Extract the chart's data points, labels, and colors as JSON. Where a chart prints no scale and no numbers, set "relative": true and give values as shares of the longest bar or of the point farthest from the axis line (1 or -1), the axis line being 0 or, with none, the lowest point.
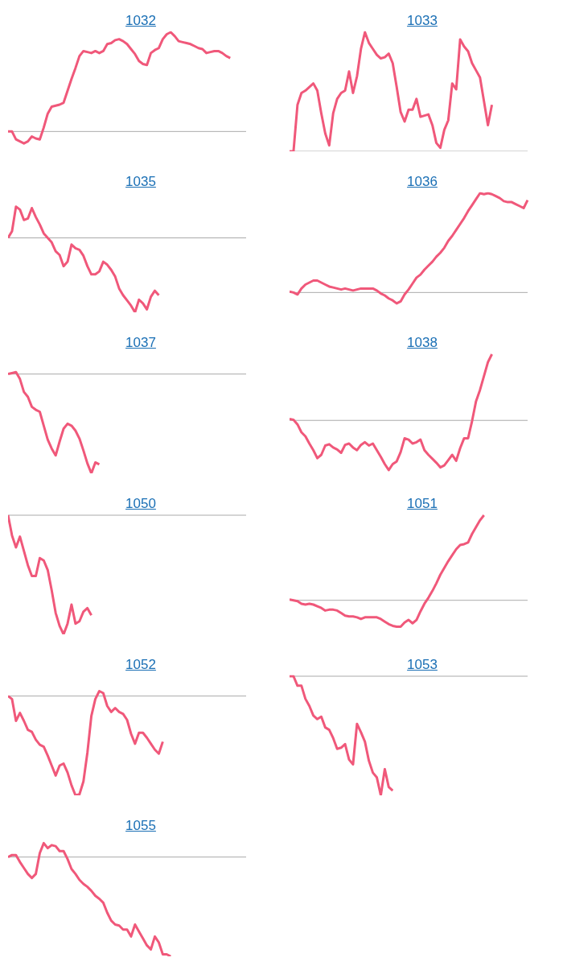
{
  "chart_data": [
    {
      "type": "line",
      "title": "1032",
      "relative": true,
      "color": "#f0587a",
      "ref_lines": [
        {
          "axis": "y",
          "value": 0,
          "color": "#aaaaaa"
        }
      ],
      "categories": [
        null,
        null,
        null,
        null,
        null,
        null,
        null,
        null,
        null,
        null,
        null,
        null,
        null,
        null,
        null,
        null,
        null,
        null,
        null,
        null,
        null,
        null,
        null,
        null,
        null,
        null,
        null,
        null,
        null,
        null,
        null,
        null,
        null,
        null,
        null,
        null,
        null,
        null,
        null,
        null,
        null,
        null,
        null,
        null,
        null,
        null,
        null,
        null,
        null,
        null,
        null,
        null,
        null,
        null,
        null,
        null,
        null,
        null,
        null,
        null,
        null
      ],
      "values": [
        0,
        0,
        -0.08,
        -0.1,
        -0.12,
        -0.1,
        -0.05,
        -0.07,
        -0.08,
        0.04,
        0.18,
        0.25,
        0.26,
        0.27,
        0.29,
        0.41,
        0.53,
        0.64,
        0.76,
        0.81,
        0.8,
        0.79,
        0.81,
        0.79,
        0.81,
        0.88,
        0.89,
        0.92,
        0.93,
        0.91,
        0.88,
        0.83,
        0.78,
        0.71,
        0.68,
        0.67,
        0.79,
        0.82,
        0.84,
        0.93,
        0.98,
        1,
        0.96,
        0.91,
        0.9,
        0.89,
        0.88,
        0.86,
        0.84,
        0.83,
        0.79,
        0.8,
        0.81,
        0.81,
        0.79,
        0.76,
        0.74,
        null,
        null,
        null,
        null
      ]
    },
    {
      "type": "line",
      "title": "1033",
      "relative": true,
      "color": "#f0587a",
      "ref_lines": [
        {
          "axis": "y",
          "value": 0,
          "color": "#aaaaaa"
        }
      ],
      "categories": [
        null,
        null,
        null,
        null,
        null,
        null,
        null,
        null,
        null,
        null,
        null,
        null,
        null,
        null,
        null,
        null,
        null,
        null,
        null,
        null,
        null,
        null,
        null,
        null,
        null,
        null,
        null,
        null,
        null,
        null,
        null,
        null,
        null,
        null,
        null,
        null,
        null,
        null,
        null,
        null,
        null,
        null,
        null,
        null,
        null,
        null,
        null,
        null,
        null,
        null,
        null,
        null,
        null,
        null,
        null,
        null,
        null,
        null,
        null,
        null,
        null
      ],
      "values": [
        0,
        0,
        0.39,
        0.49,
        0.51,
        0.54,
        0.57,
        0.51,
        0.32,
        0.15,
        0.05,
        0.32,
        0.44,
        0.49,
        0.51,
        0.67,
        0.49,
        0.63,
        0.86,
        1,
        0.91,
        0.86,
        0.81,
        0.78,
        0.79,
        0.82,
        0.74,
        0.54,
        0.33,
        0.25,
        0.35,
        0.35,
        0.44,
        0.29,
        0.3,
        0.31,
        0.22,
        0.07,
        0.03,
        0.18,
        0.26,
        0.57,
        0.52,
        0.94,
        0.88,
        0.84,
        0.74,
        0.68,
        0.62,
        0.42,
        0.22,
        0.39,
        null,
        null,
        null,
        null,
        null,
        null,
        null,
        null,
        null
      ]
    },
    {
      "type": "line",
      "title": "1035",
      "relative": true,
      "color": "#f0587a",
      "ref_lines": [
        {
          "axis": "y",
          "value": 0,
          "color": "#aaaaaa"
        }
      ],
      "categories": [
        null,
        null,
        null,
        null,
        null,
        null,
        null,
        null,
        null,
        null,
        null,
        null,
        null,
        null,
        null,
        null,
        null,
        null,
        null,
        null,
        null,
        null,
        null,
        null,
        null,
        null,
        null,
        null,
        null,
        null,
        null,
        null,
        null,
        null,
        null,
        null,
        null,
        null,
        null,
        null,
        null,
        null,
        null,
        null,
        null,
        null,
        null,
        null,
        null,
        null,
        null,
        null,
        null,
        null,
        null,
        null,
        null,
        null,
        null,
        null,
        null
      ],
      "values": [
        0,
        0.09,
        0.42,
        0.38,
        0.24,
        0.26,
        0.4,
        0.28,
        0.18,
        0.06,
        0,
        -0.06,
        -0.18,
        -0.23,
        -0.38,
        -0.32,
        -0.09,
        -0.14,
        -0.16,
        -0.24,
        -0.38,
        -0.49,
        -0.49,
        -0.45,
        -0.32,
        -0.36,
        -0.43,
        -0.52,
        -0.68,
        -0.77,
        -0.84,
        -0.91,
        -1,
        -0.83,
        -0.88,
        -0.96,
        -0.79,
        -0.71,
        -0.77,
        null,
        null,
        null,
        null,
        null,
        null,
        null,
        null,
        null,
        null,
        null,
        null,
        null,
        null,
        null,
        null,
        null,
        null,
        null,
        null,
        null,
        null
      ]
    },
    {
      "type": "line",
      "title": "1036",
      "relative": true,
      "color": "#f0587a",
      "ref_lines": [
        {
          "axis": "y",
          "value": 0,
          "color": "#aaaaaa"
        }
      ],
      "categories": [
        null,
        null,
        null,
        null,
        null,
        null,
        null,
        null,
        null,
        null,
        null,
        null,
        null,
        null,
        null,
        null,
        null,
        null,
        null,
        null,
        null,
        null,
        null,
        null,
        null,
        null,
        null,
        null,
        null,
        null,
        null,
        null,
        null,
        null,
        null,
        null,
        null,
        null,
        null,
        null,
        null,
        null,
        null,
        null,
        null,
        null,
        null,
        null,
        null,
        null,
        null,
        null,
        null,
        null,
        null,
        null,
        null,
        null,
        null,
        null,
        null
      ],
      "values": [
        0.01,
        0,
        -0.02,
        0.04,
        0.08,
        0.1,
        0.12,
        0.12,
        0.1,
        0.08,
        0.06,
        0.05,
        0.04,
        0.03,
        0.04,
        0.03,
        0.02,
        0.03,
        0.04,
        0.04,
        0.04,
        0.04,
        0.02,
        -0.01,
        -0.03,
        -0.06,
        -0.08,
        -0.11,
        -0.09,
        -0.02,
        0.03,
        0.09,
        0.15,
        0.18,
        0.23,
        0.27,
        0.31,
        0.36,
        0.4,
        0.45,
        0.52,
        0.57,
        0.63,
        0.69,
        0.75,
        0.82,
        0.88,
        0.94,
        1,
        0.99,
        1,
        0.99,
        0.97,
        0.95,
        0.92,
        0.91,
        0.91,
        0.89,
        0.87,
        0.85,
        0.93
      ]
    },
    {
      "type": "line",
      "title": "1037",
      "relative": true,
      "color": "#f0587a",
      "ref_lines": [
        {
          "axis": "y",
          "value": 0,
          "color": "#aaaaaa"
        }
      ],
      "categories": [
        null,
        null,
        null,
        null,
        null,
        null,
        null,
        null,
        null,
        null,
        null,
        null,
        null,
        null,
        null,
        null,
        null,
        null,
        null,
        null,
        null,
        null,
        null,
        null,
        null,
        null,
        null,
        null,
        null,
        null,
        null,
        null,
        null,
        null,
        null,
        null,
        null,
        null,
        null,
        null,
        null,
        null,
        null,
        null,
        null,
        null,
        null,
        null,
        null,
        null,
        null,
        null,
        null,
        null,
        null,
        null,
        null,
        null,
        null,
        null,
        null
      ],
      "values": [
        0,
        0.01,
        0.02,
        -0.05,
        -0.18,
        -0.23,
        -0.33,
        -0.36,
        -0.38,
        -0.52,
        -0.66,
        -0.75,
        -0.82,
        -0.68,
        -0.55,
        -0.5,
        -0.52,
        -0.57,
        -0.65,
        -0.77,
        -0.9,
        -1,
        -0.89,
        -0.91,
        null,
        null,
        null,
        null,
        null,
        null,
        null,
        null,
        null,
        null,
        null,
        null,
        null,
        null,
        null,
        null,
        null,
        null,
        null,
        null,
        null,
        null,
        null,
        null,
        null,
        null,
        null,
        null,
        null,
        null,
        null,
        null,
        null,
        null,
        null,
        null,
        null
      ]
    },
    {
      "type": "line",
      "title": "1038",
      "relative": true,
      "color": "#f0587a",
      "ref_lines": [
        {
          "axis": "y",
          "value": 0,
          "color": "#aaaaaa"
        }
      ],
      "categories": [
        null,
        null,
        null,
        null,
        null,
        null,
        null,
        null,
        null,
        null,
        null,
        null,
        null,
        null,
        null,
        null,
        null,
        null,
        null,
        null,
        null,
        null,
        null,
        null,
        null,
        null,
        null,
        null,
        null,
        null,
        null,
        null,
        null,
        null,
        null,
        null,
        null,
        null,
        null,
        null,
        null,
        null,
        null,
        null,
        null,
        null,
        null,
        null,
        null,
        null,
        null,
        null,
        null,
        null,
        null,
        null,
        null,
        null,
        null,
        null,
        null
      ],
      "values": [
        0.02,
        0.01,
        -0.06,
        -0.18,
        -0.24,
        -0.35,
        -0.45,
        -0.57,
        -0.52,
        -0.38,
        -0.36,
        -0.41,
        -0.44,
        -0.49,
        -0.37,
        -0.35,
        -0.41,
        -0.45,
        -0.37,
        -0.33,
        -0.38,
        -0.35,
        -0.45,
        -0.55,
        -0.66,
        -0.75,
        -0.66,
        -0.62,
        -0.48,
        -0.27,
        -0.29,
        -0.35,
        -0.33,
        -0.29,
        -0.45,
        -0.52,
        -0.58,
        -0.64,
        -0.71,
        -0.68,
        -0.6,
        -0.52,
        -0.61,
        -0.42,
        -0.27,
        -0.27,
        -0.01,
        0.29,
        0.46,
        0.67,
        0.88,
        1,
        null,
        null,
        null,
        null,
        null,
        null,
        null,
        null,
        null
      ]
    },
    {
      "type": "line",
      "title": "1050",
      "relative": true,
      "color": "#f0587a",
      "ref_lines": [
        {
          "axis": "y",
          "value": 0,
          "color": "#aaaaaa"
        }
      ],
      "categories": [
        null,
        null,
        null,
        null,
        null,
        null,
        null,
        null,
        null,
        null,
        null,
        null,
        null,
        null,
        null,
        null,
        null,
        null,
        null,
        null,
        null,
        null,
        null,
        null,
        null,
        null,
        null,
        null,
        null,
        null,
        null,
        null,
        null,
        null,
        null,
        null,
        null,
        null,
        null,
        null,
        null,
        null,
        null,
        null,
        null,
        null,
        null,
        null,
        null,
        null,
        null,
        null,
        null,
        null,
        null,
        null,
        null,
        null,
        null,
        null,
        null
      ],
      "values": [
        0,
        -0.17,
        -0.27,
        -0.18,
        -0.3,
        -0.42,
        -0.51,
        -0.51,
        -0.36,
        -0.38,
        -0.46,
        -0.63,
        -0.82,
        -0.93,
        -1,
        -0.91,
        -0.75,
        -0.91,
        -0.89,
        -0.81,
        -0.78,
        -0.84,
        null,
        null,
        null,
        null,
        null,
        null,
        null,
        null,
        null,
        null,
        null,
        null,
        null,
        null,
        null,
        null,
        null,
        null,
        null,
        null,
        null,
        null,
        null,
        null,
        null,
        null,
        null,
        null,
        null,
        null,
        null,
        null,
        null,
        null,
        null,
        null,
        null,
        null,
        null
      ]
    },
    {
      "type": "line",
      "title": "1051",
      "relative": true,
      "color": "#f0587a",
      "ref_lines": [
        {
          "axis": "y",
          "value": 0,
          "color": "#aaaaaa"
        }
      ],
      "categories": [
        null,
        null,
        null,
        null,
        null,
        null,
        null,
        null,
        null,
        null,
        null,
        null,
        null,
        null,
        null,
        null,
        null,
        null,
        null,
        null,
        null,
        null,
        null,
        null,
        null,
        null,
        null,
        null,
        null,
        null,
        null,
        null,
        null,
        null,
        null,
        null,
        null,
        null,
        null,
        null,
        null,
        null,
        null,
        null,
        null,
        null,
        null,
        null,
        null,
        null,
        null,
        null,
        null,
        null,
        null,
        null,
        null,
        null,
        null,
        null,
        null
      ],
      "values": [
        0.01,
        0,
        -0.01,
        -0.04,
        -0.05,
        -0.04,
        -0.05,
        -0.07,
        -0.09,
        -0.12,
        -0.11,
        -0.11,
        -0.12,
        -0.15,
        -0.18,
        -0.19,
        -0.19,
        -0.2,
        -0.22,
        -0.2,
        -0.2,
        -0.2,
        -0.2,
        -0.22,
        -0.25,
        -0.28,
        -0.3,
        -0.31,
        -0.31,
        -0.26,
        -0.23,
        -0.27,
        -0.23,
        -0.13,
        -0.04,
        0.03,
        0.11,
        0.2,
        0.3,
        0.38,
        0.46,
        0.53,
        0.6,
        0.65,
        0.66,
        0.68,
        0.78,
        0.86,
        0.94,
        1,
        null,
        null,
        null,
        null,
        null,
        null,
        null,
        null,
        null,
        null,
        null
      ]
    },
    {
      "type": "line",
      "title": "1052",
      "relative": true,
      "color": "#f0587a",
      "ref_lines": [
        {
          "axis": "y",
          "value": 0,
          "color": "#aaaaaa"
        }
      ],
      "categories": [
        null,
        null,
        null,
        null,
        null,
        null,
        null,
        null,
        null,
        null,
        null,
        null,
        null,
        null,
        null,
        null,
        null,
        null,
        null,
        null,
        null,
        null,
        null,
        null,
        null,
        null,
        null,
        null,
        null,
        null,
        null,
        null,
        null,
        null,
        null,
        null,
        null,
        null,
        null,
        null,
        null,
        null,
        null,
        null,
        null,
        null,
        null,
        null,
        null,
        null,
        null,
        null,
        null,
        null,
        null,
        null,
        null,
        null,
        null,
        null,
        null
      ],
      "values": [
        0,
        -0.03,
        -0.25,
        -0.17,
        -0.25,
        -0.34,
        -0.36,
        -0.44,
        -0.49,
        -0.51,
        -0.6,
        -0.7,
        -0.8,
        -0.7,
        -0.68,
        -0.77,
        -0.9,
        -1,
        -0.99,
        -0.86,
        -0.57,
        -0.2,
        -0.03,
        0.05,
        0.03,
        -0.1,
        -0.16,
        -0.12,
        -0.16,
        -0.18,
        -0.24,
        -0.38,
        -0.48,
        -0.37,
        -0.37,
        -0.42,
        -0.48,
        -0.54,
        -0.58,
        -0.46,
        null,
        null,
        null,
        null,
        null,
        null,
        null,
        null,
        null,
        null,
        null,
        null,
        null,
        null,
        null,
        null,
        null,
        null,
        null,
        null,
        null
      ]
    },
    {
      "type": "line",
      "title": "1053",
      "relative": true,
      "color": "#f0587a",
      "ref_lines": [
        {
          "axis": "y",
          "value": 0,
          "color": "#aaaaaa"
        }
      ],
      "categories": [
        null,
        null,
        null,
        null,
        null,
        null,
        null,
        null,
        null,
        null,
        null,
        null,
        null,
        null,
        null,
        null,
        null,
        null,
        null,
        null,
        null,
        null,
        null,
        null,
        null,
        null,
        null,
        null,
        null,
        null,
        null,
        null,
        null,
        null,
        null,
        null,
        null,
        null,
        null,
        null,
        null,
        null,
        null,
        null,
        null,
        null,
        null,
        null,
        null,
        null,
        null,
        null,
        null,
        null,
        null,
        null,
        null,
        null,
        null,
        null,
        null
      ],
      "values": [
        0,
        0,
        -0.08,
        -0.08,
        -0.19,
        -0.25,
        -0.33,
        -0.36,
        -0.34,
        -0.43,
        -0.45,
        -0.52,
        -0.61,
        -0.6,
        -0.57,
        -0.7,
        -0.74,
        -0.4,
        -0.47,
        -0.55,
        -0.71,
        -0.81,
        -0.85,
        -1,
        -0.78,
        -0.93,
        -0.96,
        null,
        null,
        null,
        null,
        null,
        null,
        null,
        null,
        null,
        null,
        null,
        null,
        null,
        null,
        null,
        null,
        null,
        null,
        null,
        null,
        null,
        null,
        null,
        null,
        null,
        null,
        null,
        null,
        null,
        null,
        null,
        null,
        null,
        null
      ]
    },
    {
      "type": "line",
      "title": "1055",
      "relative": true,
      "color": "#f0587a",
      "ref_lines": [
        {
          "axis": "y",
          "value": 0,
          "color": "#aaaaaa"
        }
      ],
      "categories": [
        null,
        null,
        null,
        null,
        null,
        null,
        null,
        null,
        null,
        null,
        null,
        null,
        null,
        null,
        null,
        null,
        null,
        null,
        null,
        null,
        null,
        null,
        null,
        null,
        null,
        null,
        null,
        null,
        null,
        null,
        null,
        null,
        null,
        null,
        null,
        null,
        null,
        null,
        null,
        null,
        null,
        null,
        null,
        null,
        null,
        null,
        null,
        null,
        null,
        null,
        null,
        null,
        null,
        null,
        null,
        null,
        null,
        null,
        null,
        null,
        null
      ],
      "values": [
        0,
        0.02,
        0.02,
        -0.05,
        -0.11,
        -0.17,
        -0.21,
        -0.17,
        0.04,
        0.14,
        0.09,
        0.12,
        0.11,
        0.06,
        0.06,
        -0.02,
        -0.12,
        -0.17,
        -0.23,
        -0.27,
        -0.3,
        -0.34,
        -0.39,
        -0.42,
        -0.46,
        -0.56,
        -0.64,
        -0.68,
        -0.69,
        -0.73,
        -0.73,
        -0.8,
        -0.68,
        -0.75,
        -0.82,
        -0.89,
        -0.93,
        -0.8,
        -0.86,
        -0.98,
        -0.98,
        -1,
        null,
        null,
        null,
        null,
        null,
        null,
        null,
        null,
        null,
        null,
        null,
        null,
        null,
        null,
        null,
        null,
        null,
        null,
        null
      ]
    }
  ]
}
